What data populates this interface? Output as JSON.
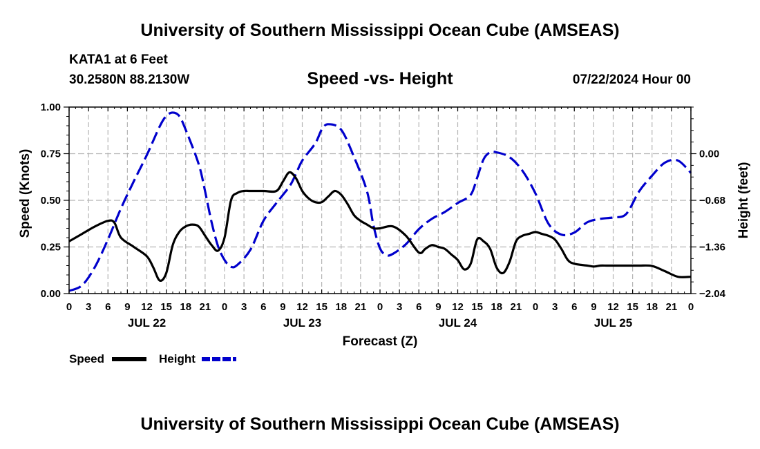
{
  "header": {
    "title": "University of Southern Mississippi Ocean Cube (AMSEAS)",
    "station": "KATA1 at 6 Feet",
    "coords": "30.2580N  88.2130W",
    "subtitle": "Speed -vs- Height",
    "datetime": "07/22/2024 Hour 00"
  },
  "footer": {
    "title": "University of Southern Mississippi Ocean Cube (AMSEAS)"
  },
  "chart_data": {
    "type": "line",
    "title": "Speed -vs- Height",
    "xlabel": "Forecast (Z)",
    "ylabel": "Speed (Knots)",
    "y2label": "Height (feet)",
    "xlim": [
      0,
      96
    ],
    "ylim": [
      0,
      1
    ],
    "y2lim": [
      -2.04,
      0.68
    ],
    "grid": true,
    "x_ticks": [
      0,
      3,
      6,
      9,
      12,
      15,
      18,
      21,
      24,
      27,
      30,
      33,
      36,
      39,
      42,
      45,
      48,
      51,
      54,
      57,
      60,
      63,
      66,
      69,
      72,
      75,
      78,
      81,
      84,
      87,
      90,
      93,
      96
    ],
    "x_tick_labels": [
      "0",
      "3",
      "6",
      "9",
      "12",
      "15",
      "18",
      "21",
      "0",
      "3",
      "6",
      "9",
      "12",
      "15",
      "18",
      "21",
      "0",
      "3",
      "6",
      "9",
      "12",
      "15",
      "18",
      "21",
      "0",
      "3",
      "6",
      "9",
      "12",
      "15",
      "18",
      "21",
      "0"
    ],
    "day_labels": [
      {
        "x": 12,
        "label": "JUL 22"
      },
      {
        "x": 36,
        "label": "JUL 23"
      },
      {
        "x": 60,
        "label": "JUL 24"
      },
      {
        "x": 84,
        "label": "JUL 25"
      }
    ],
    "y_ticks": [
      0,
      0.25,
      0.5,
      0.75,
      1.0
    ],
    "y_tick_labels": [
      "0.00",
      "0.25",
      "0.50",
      "0.75",
      "1.00"
    ],
    "y2_ticks": [
      -2.04,
      -1.36,
      -0.68,
      0.0
    ],
    "y2_tick_labels": [
      "−2.04",
      "−1.36",
      "−0.68",
      "0.00"
    ],
    "legend": {
      "placement": "bottom-left",
      "entries": [
        {
          "label": "Speed",
          "color": "#000000",
          "dash": "solid"
        },
        {
          "label": "Height",
          "color": "#0000cc",
          "dash": "dashed"
        }
      ]
    },
    "series": [
      {
        "name": "Speed",
        "axis": "left",
        "color": "#000000",
        "x": [
          0,
          2,
          4,
          6,
          7,
          8,
          10,
          12,
          13,
          14,
          15,
          16,
          17,
          18,
          19,
          20,
          21,
          22,
          23,
          24,
          25,
          26,
          27,
          28,
          30,
          32,
          33,
          34,
          35,
          36,
          37,
          38,
          39,
          40,
          41,
          42,
          43,
          44,
          45,
          46,
          47,
          48,
          50,
          52,
          54,
          55,
          56,
          57,
          58,
          59,
          60,
          61,
          62,
          63,
          64,
          65,
          66,
          67,
          68,
          69,
          70,
          71,
          72,
          73,
          74,
          75,
          76,
          77,
          78,
          80,
          81,
          82,
          83,
          84,
          85,
          86,
          88,
          90,
          92,
          94,
          96
        ],
        "values": [
          0.28,
          0.32,
          0.36,
          0.39,
          0.38,
          0.3,
          0.25,
          0.2,
          0.14,
          0.07,
          0.11,
          0.26,
          0.33,
          0.36,
          0.37,
          0.36,
          0.31,
          0.26,
          0.23,
          0.3,
          0.5,
          0.54,
          0.55,
          0.55,
          0.55,
          0.55,
          0.6,
          0.65,
          0.62,
          0.55,
          0.51,
          0.49,
          0.49,
          0.52,
          0.55,
          0.53,
          0.48,
          0.42,
          0.39,
          0.37,
          0.35,
          0.35,
          0.36,
          0.31,
          0.22,
          0.24,
          0.26,
          0.25,
          0.24,
          0.21,
          0.18,
          0.13,
          0.16,
          0.29,
          0.28,
          0.24,
          0.14,
          0.11,
          0.17,
          0.28,
          0.31,
          0.32,
          0.33,
          0.32,
          0.31,
          0.29,
          0.24,
          0.18,
          0.16,
          0.15,
          0.145,
          0.15,
          0.15,
          0.15,
          0.15,
          0.15,
          0.15,
          0.148,
          0.12,
          0.09,
          0.09
        ]
      },
      {
        "name": "Height",
        "axis": "right",
        "color": "#0000cc",
        "x": [
          0,
          2,
          4,
          6,
          8,
          10,
          12,
          14,
          15,
          16,
          17,
          18,
          20,
          21,
          22,
          23,
          24,
          25,
          26,
          28,
          30,
          32,
          34,
          35,
          36,
          38,
          39,
          40,
          42,
          44,
          46,
          47,
          48,
          49,
          50,
          52,
          54,
          56,
          58,
          60,
          62,
          63,
          64,
          65,
          66,
          68,
          70,
          72,
          74,
          76,
          78,
          80,
          82,
          84,
          86,
          88,
          90,
          92,
          94,
          96
        ],
        "values": [
          -2.0,
          -1.92,
          -1.65,
          -1.25,
          -0.8,
          -0.4,
          -0.02,
          0.4,
          0.55,
          0.6,
          0.55,
          0.35,
          -0.15,
          -0.55,
          -1.0,
          -1.35,
          -1.55,
          -1.65,
          -1.62,
          -1.4,
          -0.98,
          -0.72,
          -0.48,
          -0.3,
          -0.1,
          0.15,
          0.35,
          0.43,
          0.35,
          -0.05,
          -0.55,
          -1.05,
          -1.38,
          -1.48,
          -1.46,
          -1.32,
          -1.1,
          -0.95,
          -0.85,
          -0.72,
          -0.6,
          -0.35,
          -0.08,
          0.02,
          0.02,
          -0.05,
          -0.25,
          -0.58,
          -1.02,
          -1.18,
          -1.15,
          -1.0,
          -0.95,
          -0.93,
          -0.88,
          -0.55,
          -0.32,
          -0.13,
          -0.1,
          -0.28
        ]
      }
    ]
  }
}
